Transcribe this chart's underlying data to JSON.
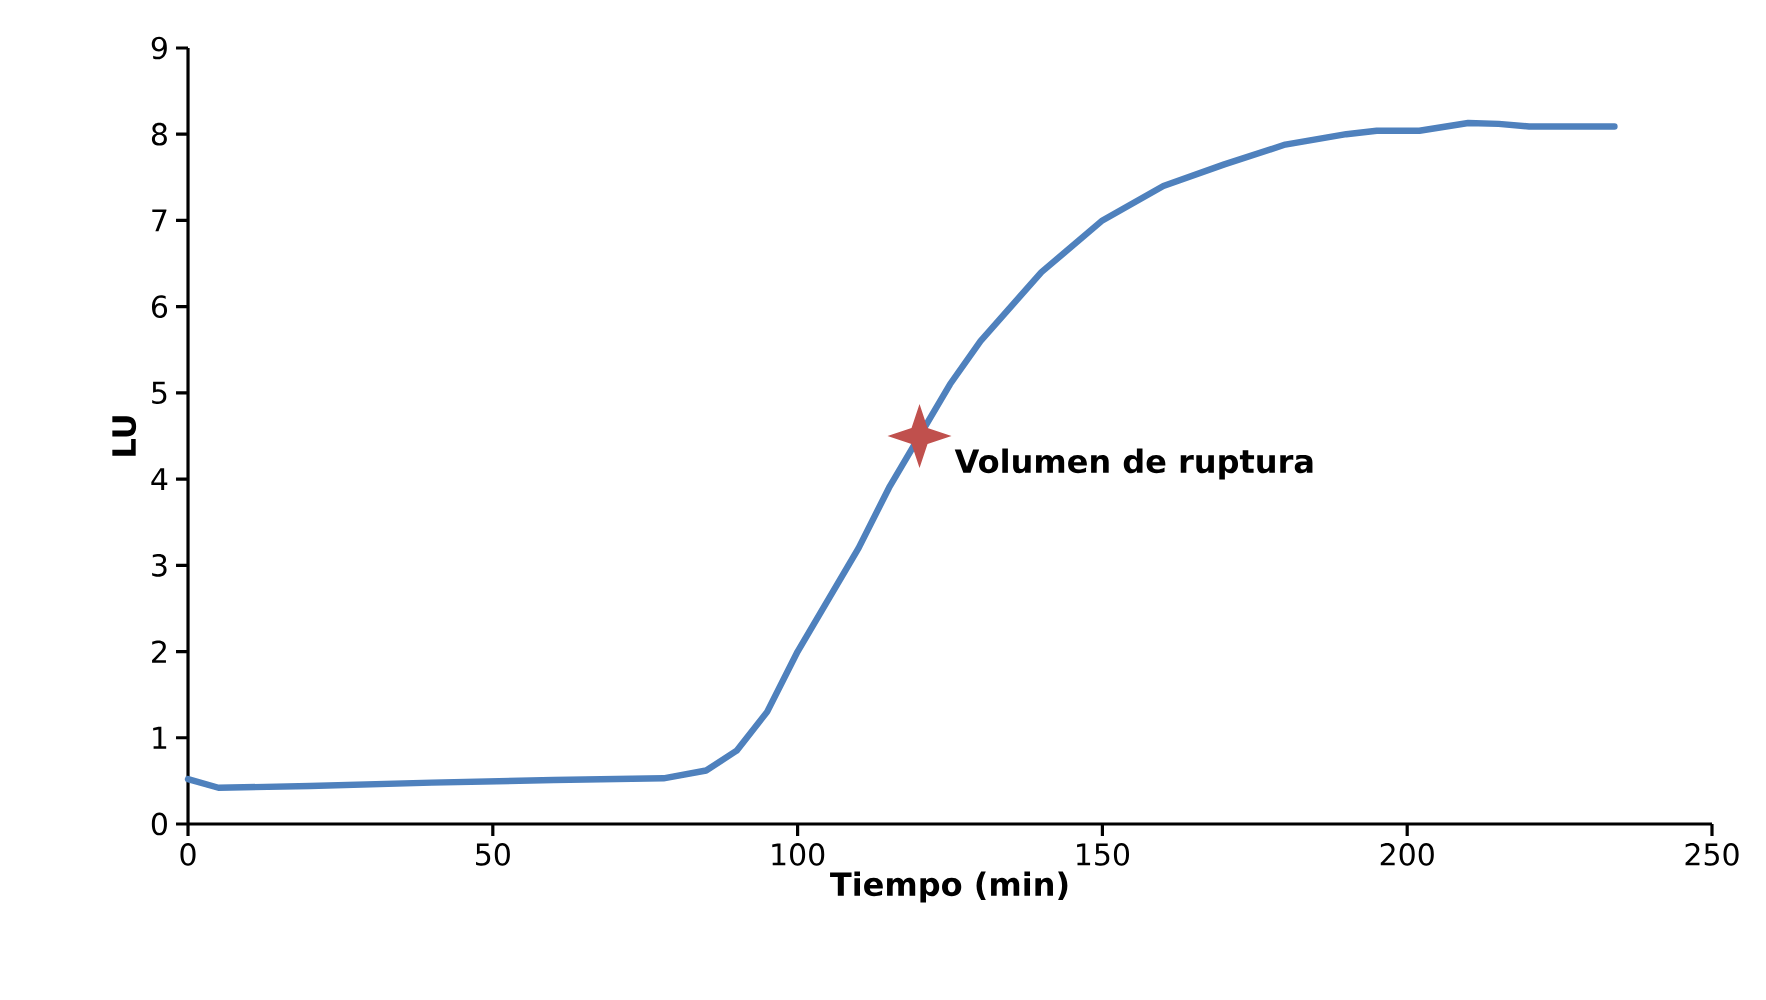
{
  "chart_data": {
    "type": "line",
    "xlabel": "Tiempo (min)",
    "ylabel": "LU",
    "xlim": [
      0,
      250
    ],
    "xticks": [
      0,
      50,
      100,
      150,
      200,
      250
    ],
    "ylim": [
      0,
      9
    ],
    "yticks": [
      0,
      1,
      2,
      3,
      4,
      5,
      6,
      7,
      8,
      9
    ],
    "grid": false,
    "series": [
      {
        "color": "#4f81bd",
        "marker": "none",
        "line_style": "solid",
        "x": [
          0,
          5,
          20,
          40,
          60,
          78,
          85,
          90,
          95,
          100,
          105,
          110,
          115,
          120,
          125,
          130,
          140,
          150,
          160,
          170,
          180,
          190,
          195,
          202,
          210,
          215,
          220,
          234
        ],
        "values": [
          0.52,
          0.42,
          0.44,
          0.48,
          0.51,
          0.53,
          0.62,
          0.85,
          1.3,
          2.0,
          2.6,
          3.2,
          3.9,
          4.5,
          5.1,
          5.6,
          6.4,
          7.0,
          7.4,
          7.65,
          7.88,
          8.0,
          8.04,
          8.04,
          8.13,
          8.12,
          8.09,
          8.09
        ]
      },
      {
        "type": "scatter",
        "color": "#c0504d",
        "marker": "star",
        "x": [
          120
        ],
        "values": [
          4.5
        ]
      }
    ],
    "annotations": [
      {
        "text": "Volumen de ruptura",
        "x": 120,
        "y": 4.5
      }
    ]
  }
}
